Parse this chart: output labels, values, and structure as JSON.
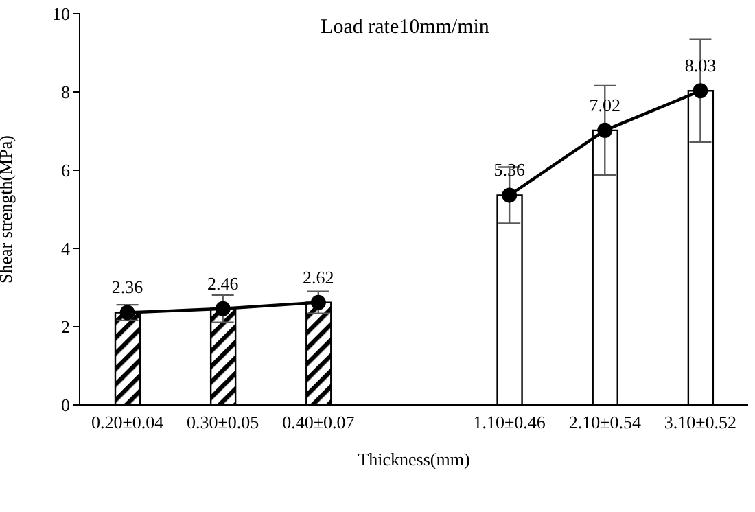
{
  "chart_data": {
    "type": "bar",
    "title": "Load rate10mm/min",
    "xlabel": "Thickness(mm)",
    "ylabel": "Shear strength(MPa)",
    "categories": [
      "0.20±0.04",
      "0.30±0.05",
      "0.40±0.07",
      null,
      "1.10±0.46",
      "2.10±0.54",
      "3.10±0.52"
    ],
    "series": [
      {
        "color": "#000000",
        "colors": [
          "#000000",
          "#000000",
          "#000000",
          "#ffffff",
          "#ffffff",
          "#ffffff",
          "#ffffff"
        ],
        "values": [
          2.36,
          2.46,
          2.62,
          null,
          5.36,
          7.02,
          8.03
        ]
      },
      {
        "type": "line",
        "color": "#000000",
        "marker": "circle",
        "values": [
          2.36,
          2.46,
          2.62,
          null,
          5.36,
          7.02,
          8.03
        ],
        "errors": [
          0.2,
          0.35,
          0.28,
          null,
          0.72,
          1.14,
          1.31
        ],
        "value_labels": [
          "2.36",
          "2.46",
          "2.62",
          null,
          "5.36",
          "7.02",
          "8.03"
        ]
      }
    ],
    "ylim": [
      0,
      10
    ],
    "yticks": [
      0,
      2,
      4,
      6,
      8,
      10
    ]
  }
}
